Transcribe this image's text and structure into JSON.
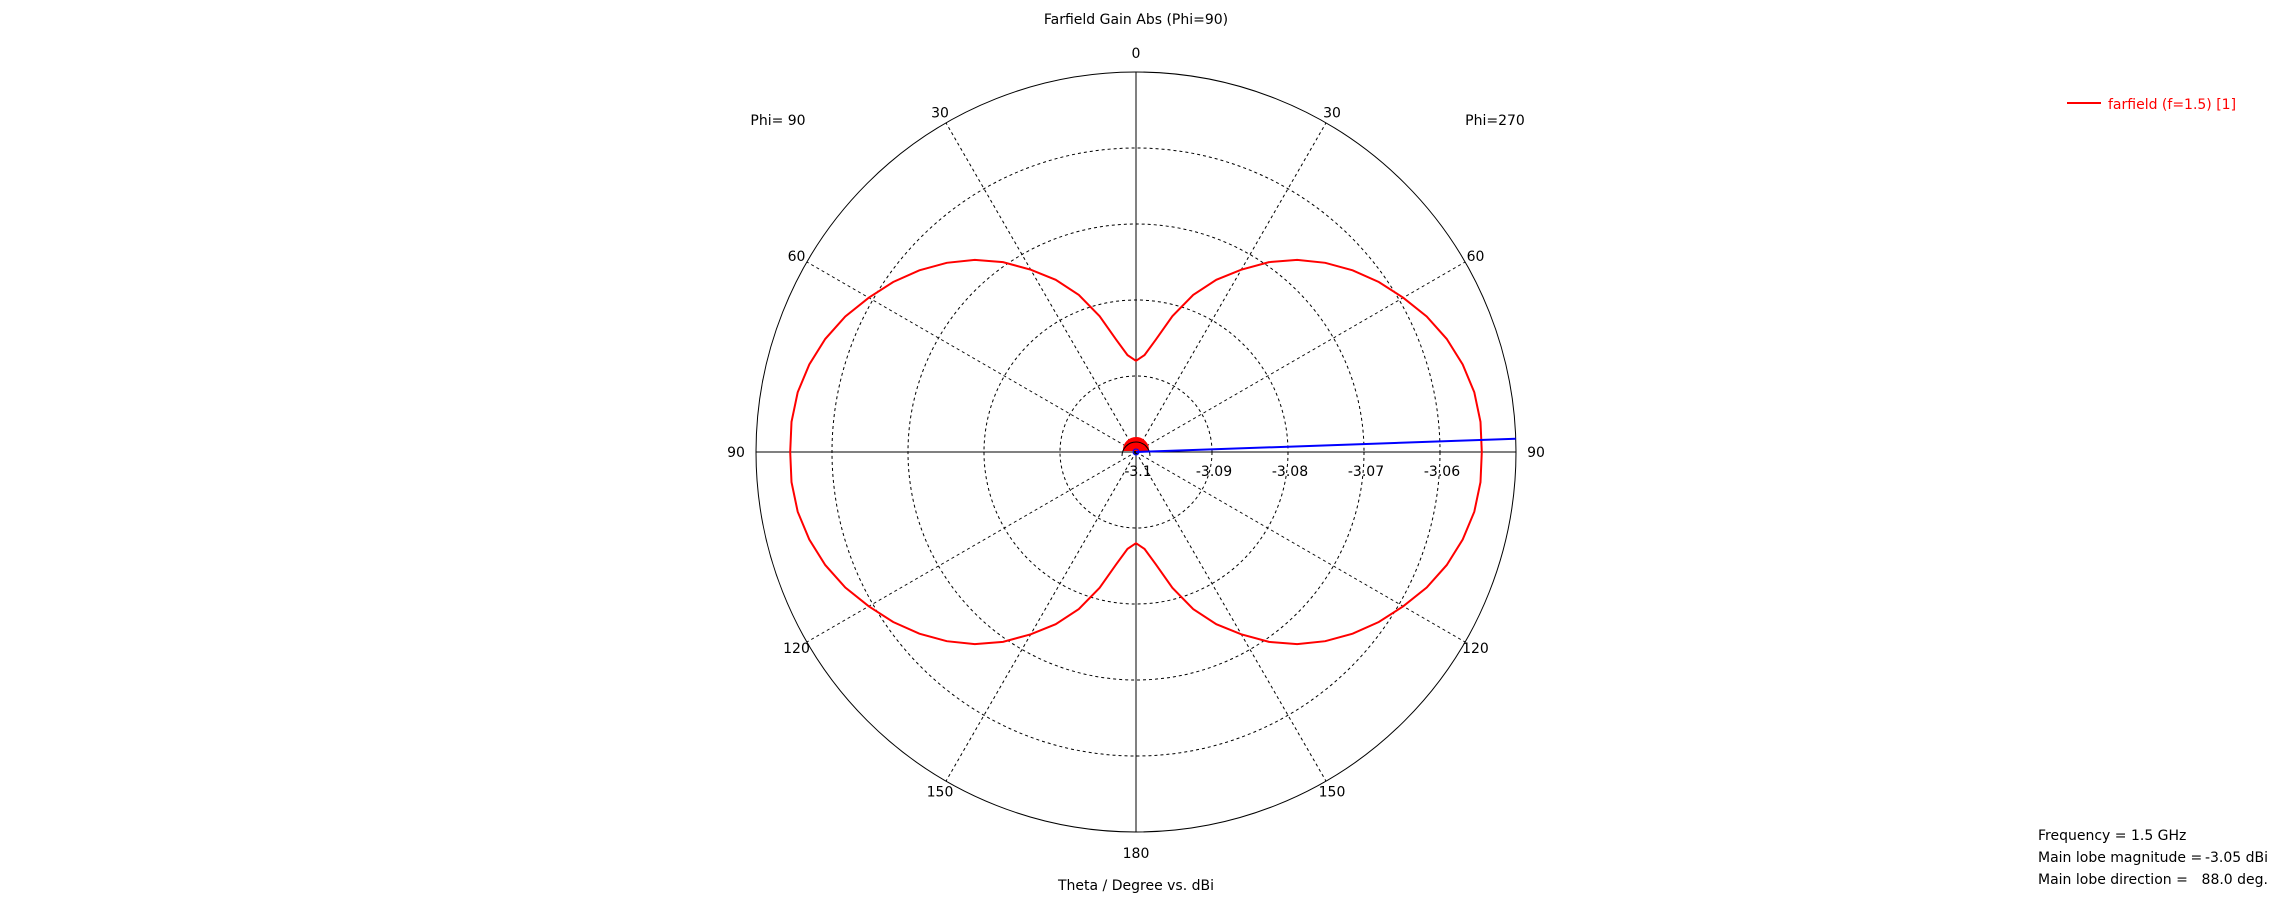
{
  "chart_data": {
    "type": "polar-line",
    "title": "Farfield Gain Abs (Phi=90)",
    "xlabel": "Theta / Degree vs. dBi",
    "phi_left_label": "Phi= 90",
    "phi_right_label": "Phi=270",
    "angle_labels": [
      "0",
      "30",
      "30",
      "60",
      "60",
      "90",
      "90",
      "120",
      "120",
      "150",
      "150",
      "180"
    ],
    "radial_ticks": [
      "-3.1",
      "-3.09",
      "-3.08",
      "-3.07",
      "-3.06"
    ],
    "radial_range": [
      -3.1,
      -3.05
    ],
    "grid": true,
    "legend_position": "top-right",
    "series": [
      {
        "name": "farfield (f=1.5) [1]",
        "color": "#ff0000",
        "theta_deg": [
          0,
          5,
          10,
          15,
          20,
          25,
          30,
          35,
          40,
          45,
          50,
          55,
          60,
          65,
          70,
          75,
          80,
          85,
          90,
          95,
          100,
          105,
          110,
          115,
          120,
          125,
          130,
          135,
          140,
          145,
          150,
          155,
          160,
          165,
          170,
          175,
          180
        ],
        "gain_dbi": [
          -3.088,
          -3.0872,
          -3.085,
          -3.0815,
          -3.078,
          -3.075,
          -3.0723,
          -3.0695,
          -3.067,
          -3.0648,
          -3.0628,
          -3.061,
          -3.0594,
          -3.0578,
          -3.0565,
          -3.0555,
          -3.0548,
          -3.0545,
          -3.0545,
          -3.0545,
          -3.0548,
          -3.0555,
          -3.0565,
          -3.0578,
          -3.0594,
          -3.061,
          -3.0628,
          -3.0648,
          -3.067,
          -3.0695,
          -3.0723,
          -3.075,
          -3.078,
          -3.0815,
          -3.085,
          -3.0872,
          -3.088
        ]
      }
    ],
    "main_lobe_direction_marker_deg": 88.0
  },
  "info": {
    "frequency_label": "Frequency = 1.5 GHz",
    "magnitude_label": "Main lobe magnitude =",
    "magnitude_value": "-3.05 dBi",
    "direction_label": "Main lobe direction =",
    "direction_value": "88.0 deg."
  },
  "colors": {
    "series": "#ff0000",
    "marker": "#0000ff",
    "grid": "#000000"
  }
}
